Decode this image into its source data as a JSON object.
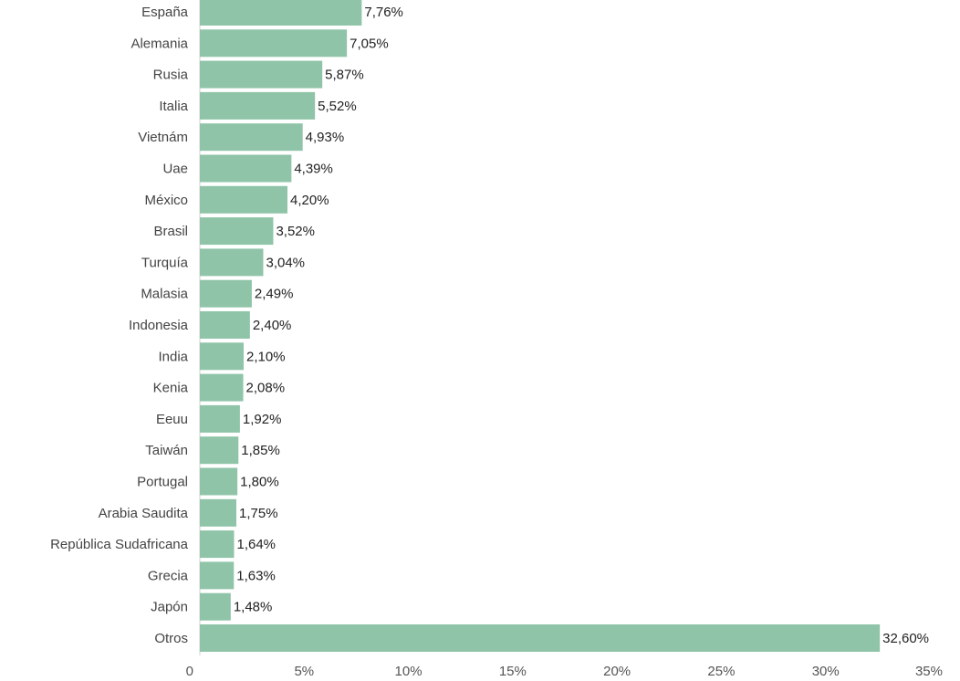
{
  "chart_data": {
    "type": "bar",
    "orientation": "horizontal",
    "title": "",
    "xlabel": "",
    "ylabel": "",
    "xlim": [
      0,
      35
    ],
    "grid": false,
    "legend": "none",
    "bar_color": "#8fc4a8",
    "categories": [
      "España",
      "Alemania",
      "Rusia",
      "Italia",
      "Vietnám",
      "Uae",
      "México",
      "Brasil",
      "Turquía",
      "Malasia",
      "Indonesia",
      "India",
      "Kenia",
      "Eeuu",
      "Taiwán",
      "Portugal",
      "Arabia Saudita",
      "República Sudafricana",
      "Grecia",
      "Japón",
      "Otros"
    ],
    "values": [
      7.76,
      7.05,
      5.87,
      5.52,
      4.93,
      4.39,
      4.2,
      3.52,
      3.04,
      2.49,
      2.4,
      2.1,
      2.08,
      1.92,
      1.85,
      1.8,
      1.75,
      1.64,
      1.63,
      1.48,
      32.6
    ],
    "value_labels": [
      "7,76%",
      "7,05%",
      "5,87%",
      "5,52%",
      "4,93%",
      "4,39%",
      "4,20%",
      "3,52%",
      "3,04%",
      "2,49%",
      "2,40%",
      "2,10%",
      "2,08%",
      "1,92%",
      "1,85%",
      "1,80%",
      "1,75%",
      "1,64%",
      "1,63%",
      "1,48%",
      "32,60%"
    ],
    "x_ticks": [
      0,
      5,
      10,
      15,
      20,
      25,
      30,
      35
    ],
    "x_tick_labels": [
      "0",
      "5%",
      "10%",
      "15%",
      "20%",
      "25%",
      "30%",
      "35%"
    ]
  }
}
